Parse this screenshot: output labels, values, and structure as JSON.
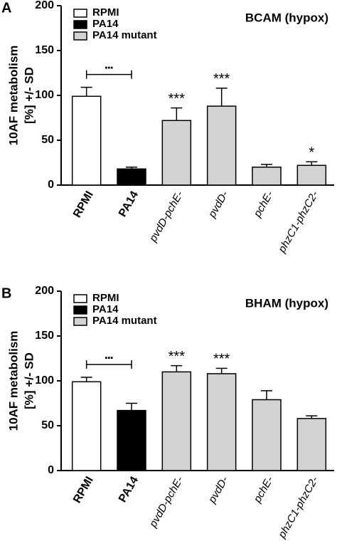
{
  "chart_data": [
    {
      "type": "bar",
      "panel": "A",
      "legend_title": "BCAM (hypox)",
      "ylabel": [
        "10AF metabolism",
        "[%] +/- SD"
      ],
      "categories": [
        "RPMI",
        "PA14",
        "pvdD-pchE-",
        "pvdD-",
        "pchE-",
        "phzC1-phzC2-"
      ],
      "italic": [
        false,
        false,
        true,
        true,
        true,
        true
      ],
      "values": [
        99,
        18,
        72,
        88,
        20,
        22
      ],
      "errors": [
        10,
        2,
        14,
        20,
        3,
        4
      ],
      "colors": [
        "#ffffff",
        "#000000",
        "#d3d3d3",
        "#d3d3d3",
        "#d3d3d3",
        "#d3d3d3"
      ],
      "significance": [
        null,
        null,
        "***",
        "***",
        null,
        "*"
      ],
      "bracket_label": "▪▪▪",
      "legend": [
        {
          "name": "RPMI",
          "color": "#ffffff"
        },
        {
          "name": "PA14",
          "color": "#000000"
        },
        {
          "name": "PA14 mutant",
          "color": "#d3d3d3"
        }
      ],
      "ylim": [
        0,
        200
      ],
      "yticks": [
        0,
        50,
        100,
        150,
        200
      ]
    },
    {
      "type": "bar",
      "panel": "B",
      "legend_title": "BHAM (hypox)",
      "ylabel": [
        "10AF metabolism",
        "[%] +/- SD"
      ],
      "categories": [
        "RPMI",
        "PA14",
        "pvdD-pchE-",
        "pvdD-",
        "pchE-",
        "phzC1-phzC2-"
      ],
      "italic": [
        false,
        false,
        true,
        true,
        true,
        true
      ],
      "values": [
        99,
        67,
        110,
        108,
        79,
        58
      ],
      "errors": [
        5,
        8,
        7,
        6,
        10,
        3
      ],
      "colors": [
        "#ffffff",
        "#000000",
        "#d3d3d3",
        "#d3d3d3",
        "#d3d3d3",
        "#d3d3d3"
      ],
      "significance": [
        null,
        null,
        "***",
        "***",
        null,
        null
      ],
      "bracket_label": "▪▪▪",
      "legend": [
        {
          "name": "RPMI",
          "color": "#ffffff"
        },
        {
          "name": "PA14",
          "color": "#000000"
        },
        {
          "name": "PA14 mutant",
          "color": "#d3d3d3"
        }
      ],
      "ylim": [
        0,
        200
      ],
      "yticks": [
        0,
        50,
        100,
        150,
        200
      ]
    }
  ]
}
